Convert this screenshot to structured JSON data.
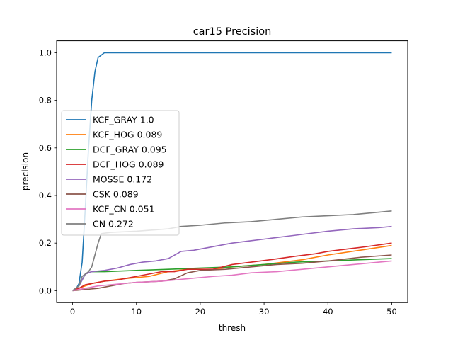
{
  "chart_data": {
    "type": "line",
    "title": "car15 Precision",
    "xlabel": "thresh",
    "ylabel": "precision",
    "xlim": [
      -2.5,
      52.5
    ],
    "ylim": [
      -0.05,
      1.05
    ],
    "xticks": [
      0,
      10,
      20,
      30,
      40,
      50
    ],
    "yticks": [
      0.0,
      0.2,
      0.4,
      0.6,
      0.8,
      1.0
    ],
    "xtick_labels": [
      "0",
      "10",
      "20",
      "30",
      "40",
      "50"
    ],
    "ytick_labels": [
      "0.0",
      "0.2",
      "0.4",
      "0.6",
      "0.8",
      "1.0"
    ],
    "legend_position": "center-left",
    "grid": false,
    "series": [
      {
        "name": "KCF_GRAY 1.0",
        "color": "#1f77b4",
        "points": [
          [
            0,
            0
          ],
          [
            0.5,
            0.005
          ],
          [
            1,
            0.03
          ],
          [
            1.5,
            0.12
          ],
          [
            2,
            0.35
          ],
          [
            2.5,
            0.6
          ],
          [
            3,
            0.8
          ],
          [
            3.5,
            0.92
          ],
          [
            4,
            0.98
          ],
          [
            5,
            1.0
          ],
          [
            50,
            1.0
          ]
        ]
      },
      {
        "name": "KCF_HOG 0.089",
        "color": "#ff7f0e",
        "points": [
          [
            0,
            0
          ],
          [
            1,
            0.01
          ],
          [
            2,
            0.02
          ],
          [
            3,
            0.03
          ],
          [
            5,
            0.04
          ],
          [
            8,
            0.05
          ],
          [
            12,
            0.06
          ],
          [
            15,
            0.08
          ],
          [
            18,
            0.09
          ],
          [
            22,
            0.09
          ],
          [
            25,
            0.1
          ],
          [
            30,
            0.11
          ],
          [
            33,
            0.12
          ],
          [
            36,
            0.13
          ],
          [
            40,
            0.15
          ],
          [
            45,
            0.17
          ],
          [
            50,
            0.19
          ]
        ]
      },
      {
        "name": "DCF_GRAY 0.095",
        "color": "#2ca02c",
        "points": [
          [
            0,
            0
          ],
          [
            1,
            0.02
          ],
          [
            2,
            0.07
          ],
          [
            3,
            0.08
          ],
          [
            5,
            0.08
          ],
          [
            10,
            0.085
          ],
          [
            15,
            0.09
          ],
          [
            20,
            0.095
          ],
          [
            25,
            0.1
          ],
          [
            30,
            0.11
          ],
          [
            35,
            0.12
          ],
          [
            40,
            0.125
          ],
          [
            45,
            0.13
          ],
          [
            50,
            0.135
          ]
        ]
      },
      {
        "name": "DCF_HOG 0.089",
        "color": "#d62728",
        "points": [
          [
            0,
            0
          ],
          [
            1,
            0.01
          ],
          [
            2,
            0.025
          ],
          [
            3,
            0.03
          ],
          [
            5,
            0.04
          ],
          [
            7,
            0.045
          ],
          [
            10,
            0.06
          ],
          [
            12,
            0.07
          ],
          [
            14,
            0.08
          ],
          [
            16,
            0.08
          ],
          [
            18,
            0.09
          ],
          [
            22,
            0.09
          ],
          [
            25,
            0.11
          ],
          [
            28,
            0.12
          ],
          [
            31,
            0.13
          ],
          [
            35,
            0.145
          ],
          [
            38,
            0.155
          ],
          [
            40,
            0.165
          ],
          [
            43,
            0.175
          ],
          [
            46,
            0.185
          ],
          [
            50,
            0.2
          ]
        ]
      },
      {
        "name": "MOSSE 0.172",
        "color": "#9467bd",
        "points": [
          [
            0,
            0
          ],
          [
            1,
            0.02
          ],
          [
            2,
            0.07
          ],
          [
            3,
            0.08
          ],
          [
            5,
            0.085
          ],
          [
            7,
            0.095
          ],
          [
            9,
            0.11
          ],
          [
            11,
            0.12
          ],
          [
            13,
            0.125
          ],
          [
            15,
            0.135
          ],
          [
            17,
            0.165
          ],
          [
            19,
            0.17
          ],
          [
            21,
            0.18
          ],
          [
            23,
            0.19
          ],
          [
            25,
            0.2
          ],
          [
            28,
            0.21
          ],
          [
            31,
            0.22
          ],
          [
            34,
            0.23
          ],
          [
            37,
            0.24
          ],
          [
            40,
            0.25
          ],
          [
            44,
            0.26
          ],
          [
            48,
            0.265
          ],
          [
            50,
            0.27
          ]
        ]
      },
      {
        "name": "CSK 0.089",
        "color": "#8c564b",
        "points": [
          [
            0,
            0
          ],
          [
            2,
            0.005
          ],
          [
            4,
            0.01
          ],
          [
            6,
            0.02
          ],
          [
            8,
            0.03
          ],
          [
            10,
            0.035
          ],
          [
            14,
            0.04
          ],
          [
            16,
            0.05
          ],
          [
            18,
            0.075
          ],
          [
            20,
            0.085
          ],
          [
            24,
            0.09
          ],
          [
            28,
            0.1
          ],
          [
            32,
            0.11
          ],
          [
            36,
            0.115
          ],
          [
            40,
            0.125
          ],
          [
            45,
            0.14
          ],
          [
            50,
            0.15
          ]
        ]
      },
      {
        "name": "KCF_CN 0.051",
        "color": "#e377c2",
        "points": [
          [
            0,
            0
          ],
          [
            2,
            0.01
          ],
          [
            4,
            0.02
          ],
          [
            6,
            0.025
          ],
          [
            8,
            0.03
          ],
          [
            10,
            0.035
          ],
          [
            14,
            0.04
          ],
          [
            18,
            0.05
          ],
          [
            22,
            0.06
          ],
          [
            25,
            0.065
          ],
          [
            28,
            0.075
          ],
          [
            32,
            0.08
          ],
          [
            36,
            0.09
          ],
          [
            40,
            0.1
          ],
          [
            44,
            0.11
          ],
          [
            48,
            0.12
          ],
          [
            50,
            0.125
          ]
        ]
      },
      {
        "name": "CN 0.272",
        "color": "#7f7f7f",
        "points": [
          [
            0,
            0
          ],
          [
            1,
            0.02
          ],
          [
            1.5,
            0.06
          ],
          [
            2.5,
            0.08
          ],
          [
            3,
            0.1
          ],
          [
            3.5,
            0.15
          ],
          [
            4,
            0.2
          ],
          [
            4.5,
            0.24
          ],
          [
            6,
            0.245
          ],
          [
            10,
            0.25
          ],
          [
            15,
            0.26
          ],
          [
            17,
            0.27
          ],
          [
            20,
            0.275
          ],
          [
            24,
            0.285
          ],
          [
            28,
            0.29
          ],
          [
            32,
            0.3
          ],
          [
            36,
            0.31
          ],
          [
            40,
            0.315
          ],
          [
            44,
            0.32
          ],
          [
            48,
            0.33
          ],
          [
            50,
            0.335
          ]
        ]
      }
    ]
  }
}
